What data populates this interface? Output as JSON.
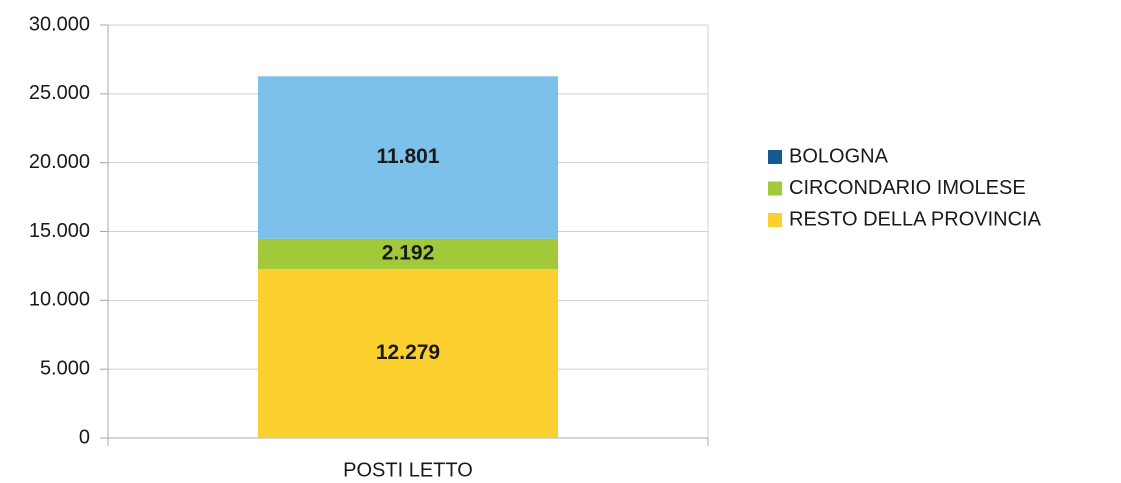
{
  "chart_data": {
    "type": "stacked_bar",
    "categories": [
      "POSTI LETTO"
    ],
    "series": [
      {
        "name": "BOLOGNA",
        "color": "#7bc1ea",
        "legend_color": "#135a93",
        "values": [
          11801
        ],
        "value_labels": [
          "11.801"
        ]
      },
      {
        "name": "CIRCONDARIO IMOLESE",
        "color": "#a2c93a",
        "legend_color": "#a2c93a",
        "values": [
          2192
        ],
        "value_labels": [
          "2.192"
        ]
      },
      {
        "name": "RESTO DELLA PROVINCIA",
        "color": "#fcd12f",
        "legend_color": "#fcd12f",
        "values": [
          12279
        ],
        "value_labels": [
          "12.279"
        ]
      }
    ],
    "ylim": [
      0,
      30000
    ],
    "yticks": [
      0,
      {
        "value": 5000,
        "label": "5.000"
      },
      {
        "value": 10000,
        "label": "10.000"
      },
      {
        "value": 15000,
        "label": "15.000"
      },
      {
        "value": 20000,
        "label": "20.000"
      },
      {
        "value": 25000,
        "label": "25.000"
      },
      {
        "value": 30000,
        "label": "30.000"
      }
    ],
    "grid": true,
    "legend": "right"
  }
}
